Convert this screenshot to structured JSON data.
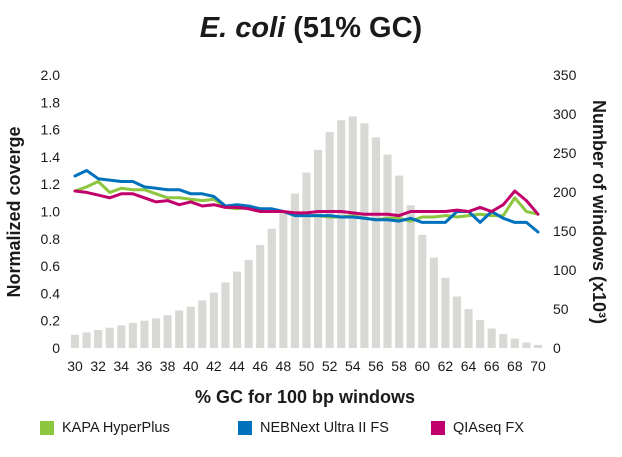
{
  "title_italic": "E. coli",
  "title_rest": " (51% GC)",
  "colors": {
    "kapa": "#8dc63f",
    "neb": "#0072bc",
    "qia": "#c2006b",
    "bars": "#d8d8d5"
  },
  "chart_data": {
    "type": "bar+line",
    "title": "E. coli (51% GC)",
    "xlabel": "% GC for 100 bp windows",
    "ylabel_left": "Normalized coverge",
    "ylabel_right": "Number of windows (x10³)",
    "ylim_left": [
      0,
      2.0
    ],
    "ylim_right": [
      0,
      350
    ],
    "x_ticks": [
      "30",
      "32",
      "34",
      "36",
      "38",
      "40",
      "42",
      "44",
      "46",
      "48",
      "50",
      "52",
      "54",
      "56",
      "58",
      "60",
      "62",
      "64",
      "66",
      "68",
      "70"
    ],
    "y_ticks_left": [
      "0",
      "0.2",
      "0.4",
      "0.6",
      "0.8",
      "1.0",
      "1.2",
      "1.4",
      "1.6",
      "1.8",
      "2.0"
    ],
    "y_ticks_right": [
      "0",
      "50",
      "100",
      "150",
      "200",
      "250",
      "300",
      "350"
    ],
    "x": [
      30,
      31,
      32,
      33,
      34,
      35,
      36,
      37,
      38,
      39,
      40,
      41,
      42,
      43,
      44,
      45,
      46,
      47,
      48,
      49,
      50,
      51,
      52,
      53,
      54,
      55,
      56,
      57,
      58,
      59,
      60,
      61,
      62,
      63,
      64,
      65,
      66,
      67,
      68,
      69,
      70
    ],
    "bars": [
      17,
      20,
      23,
      26,
      29,
      32,
      35,
      38,
      42,
      48,
      53,
      61,
      71,
      84,
      98,
      113,
      132,
      153,
      173,
      198,
      225,
      254,
      277,
      292,
      297,
      288,
      270,
      248,
      221,
      183,
      145,
      116,
      90,
      66,
      50,
      36,
      25,
      18,
      12,
      7,
      4
    ],
    "series": [
      {
        "name": "KAPA HyperPlus",
        "color_key": "kapa",
        "values": [
          1.15,
          1.18,
          1.22,
          1.14,
          1.17,
          1.16,
          1.16,
          1.13,
          1.1,
          1.1,
          1.09,
          1.08,
          1.09,
          1.03,
          1.02,
          1.03,
          1.02,
          1.0,
          1.0,
          0.98,
          0.97,
          0.97,
          0.96,
          0.96,
          0.97,
          0.95,
          0.94,
          0.95,
          0.95,
          0.93,
          0.96,
          0.96,
          0.97,
          0.96,
          0.97,
          0.98,
          0.97,
          0.97,
          1.1,
          1.0,
          0.98
        ]
      },
      {
        "name": "NEBNext Ultra II FS",
        "color_key": "neb",
        "values": [
          1.26,
          1.3,
          1.24,
          1.23,
          1.22,
          1.22,
          1.18,
          1.17,
          1.16,
          1.16,
          1.13,
          1.13,
          1.11,
          1.04,
          1.05,
          1.04,
          1.02,
          1.02,
          1.0,
          0.97,
          0.97,
          0.97,
          0.97,
          0.96,
          0.96,
          0.95,
          0.94,
          0.94,
          0.93,
          0.95,
          0.92,
          0.92,
          0.92,
          1.0,
          1.0,
          0.92,
          1.0,
          0.95,
          0.92,
          0.92,
          0.85
        ]
      },
      {
        "name": "QIAseq FX",
        "color_key": "qia",
        "values": [
          1.15,
          1.14,
          1.12,
          1.1,
          1.13,
          1.13,
          1.1,
          1.07,
          1.08,
          1.05,
          1.07,
          1.04,
          1.05,
          1.03,
          1.03,
          1.02,
          1.0,
          1.0,
          1.0,
          0.99,
          0.99,
          1.0,
          1.0,
          1.0,
          0.99,
          0.98,
          0.98,
          0.98,
          0.97,
          1.0,
          1.0,
          1.0,
          1.0,
          1.01,
          1.0,
          1.03,
          1.0,
          1.05,
          1.15,
          1.08,
          0.98
        ]
      }
    ]
  },
  "legend": [
    {
      "label": "KAPA HyperPlus",
      "color_key": "kapa"
    },
    {
      "label": "NEBNext Ultra II FS",
      "color_key": "neb"
    },
    {
      "label": "QIAseq FX",
      "color_key": "qia"
    }
  ]
}
